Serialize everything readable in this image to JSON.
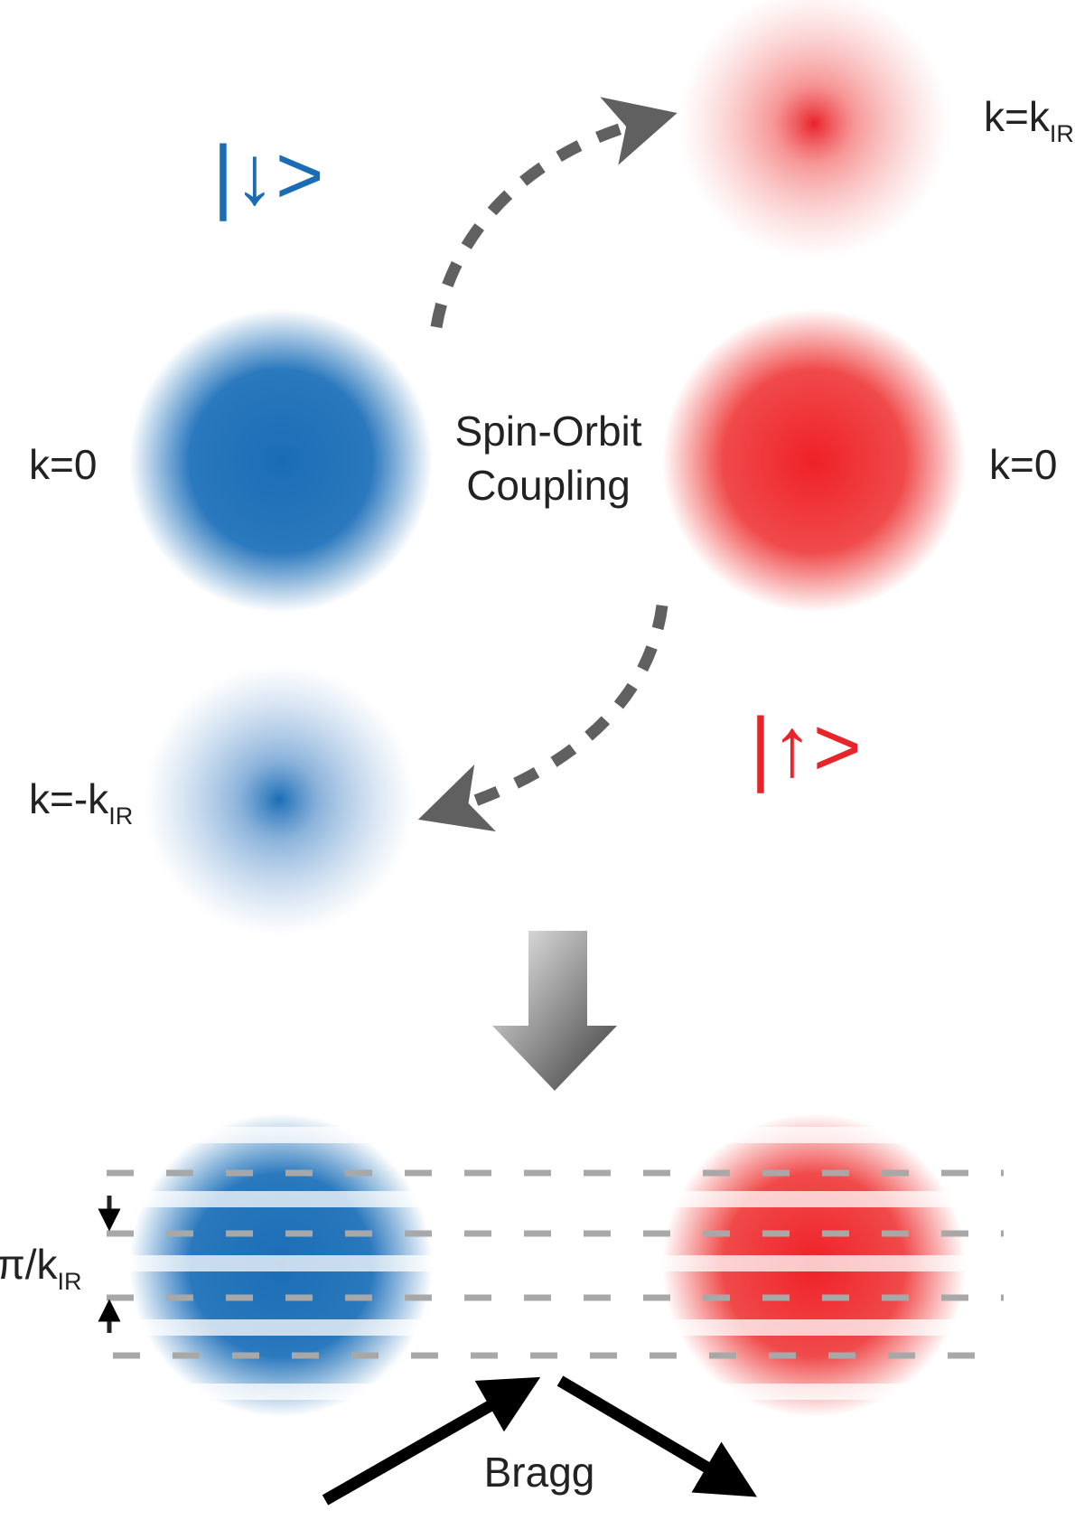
{
  "kets": {
    "down": "|↓>",
    "up": "|↑>"
  },
  "labels": {
    "top_right": {
      "text": "k=k",
      "sub": "IR"
    },
    "left_k0": "k=0",
    "right_k0": "k=0",
    "bottom_left": {
      "text": "k=-k",
      "sub": "IR"
    },
    "spacing": {
      "text": "π/k",
      "sub": "IR"
    }
  },
  "center_label": {
    "line1": "Spin-Orbit",
    "line2": "Coupling"
  },
  "bragg": "Bragg"
}
